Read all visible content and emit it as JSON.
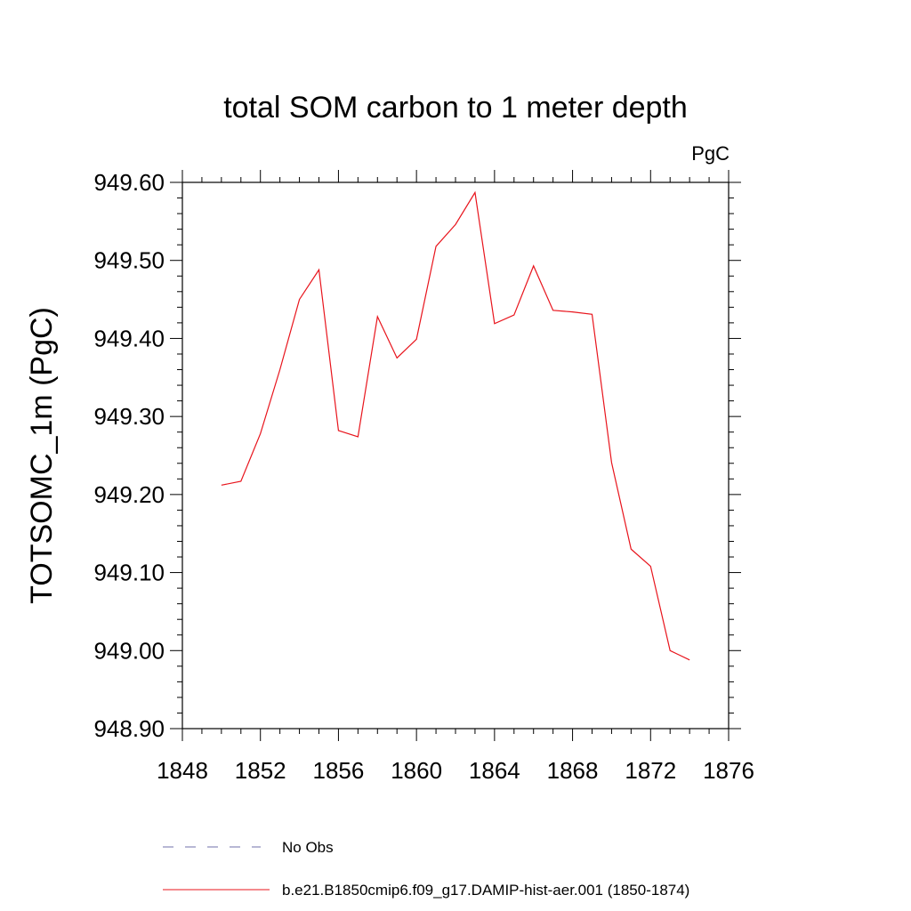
{
  "chart_data": {
    "type": "line",
    "title": "total SOM carbon to 1 meter depth",
    "units": "PgC",
    "ylabel": "TOTSOMC_1m  (PgC)",
    "xlabel": "",
    "xlim": [
      1848,
      1876
    ],
    "ylim": [
      948.9,
      949.6
    ],
    "x_major_ticks": [
      1848,
      1852,
      1856,
      1860,
      1864,
      1868,
      1872,
      1876
    ],
    "y_major_ticks": [
      948.9,
      949.0,
      949.1,
      949.2,
      949.3,
      949.4,
      949.5,
      949.6
    ],
    "x_tick_labels": [
      "1848",
      "1852",
      "1856",
      "1860",
      "1864",
      "1868",
      "1872",
      "1876"
    ],
    "y_tick_labels": [
      "948.90",
      "949.00",
      "949.10",
      "949.20",
      "949.30",
      "949.40",
      "949.50",
      "949.60"
    ],
    "grid": false,
    "legend_position": "bottom",
    "series": [
      {
        "name": "No Obs",
        "color": "#6f6fa8",
        "dash": "dashed",
        "x": [],
        "values": []
      },
      {
        "name": "b.e21.B1850cmip6.f09_g17.DAMIP-hist-aer.001 (1850-1874)",
        "color": "#e8141c",
        "dash": "solid",
        "x": [
          1850,
          1851,
          1852,
          1853,
          1854,
          1855,
          1856,
          1857,
          1858,
          1859,
          1860,
          1861,
          1862,
          1863,
          1864,
          1865,
          1866,
          1867,
          1868,
          1869,
          1870,
          1871,
          1872,
          1873,
          1874
        ],
        "values": [
          949.212,
          949.217,
          949.278,
          949.36,
          949.45,
          949.488,
          949.282,
          949.274,
          949.428,
          949.375,
          949.399,
          949.518,
          949.546,
          949.587,
          949.419,
          949.43,
          949.493,
          949.436,
          949.434,
          949.431,
          949.241,
          949.13,
          949.108,
          949.0,
          948.988
        ]
      }
    ]
  }
}
